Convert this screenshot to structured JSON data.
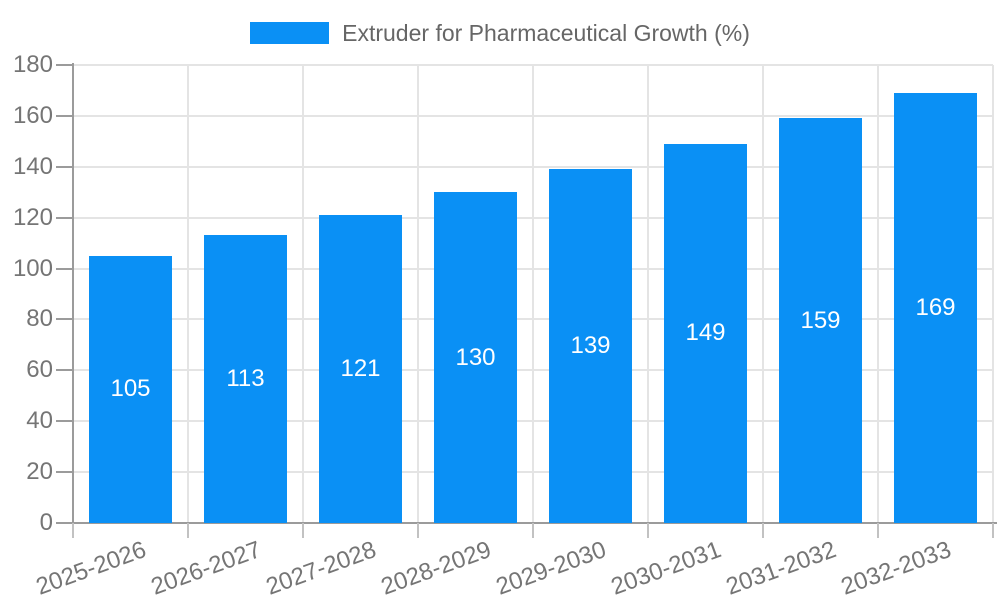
{
  "chart_data": {
    "type": "bar",
    "title": "Extruder for Pharmaceutical Growth (%)",
    "categories": [
      "2025-2026",
      "2026-2027",
      "2027-2028",
      "2028-2029",
      "2029-2030",
      "2030-2031",
      "2031-2032",
      "2032-2033"
    ],
    "values": [
      105,
      113,
      121,
      130,
      139,
      149,
      159,
      169
    ],
    "xlabel": "",
    "ylabel": "",
    "ylim": [
      0,
      180
    ],
    "yticks": [
      0,
      20,
      40,
      60,
      80,
      100,
      120,
      140,
      160,
      180
    ],
    "grid": true,
    "legend_position": "top-center",
    "value_label_position": "inside-center",
    "x_label_rotation_deg": -20,
    "colors": {
      "bar": "#0a90f5",
      "value_label": "#ffffff",
      "grid_line": "#e4e4e4",
      "axis_line": "#9b9b9b",
      "tick_mark": "#c2c2c2",
      "tick_label": "#757575",
      "legend_text": "#666666",
      "background": "#ffffff"
    }
  }
}
